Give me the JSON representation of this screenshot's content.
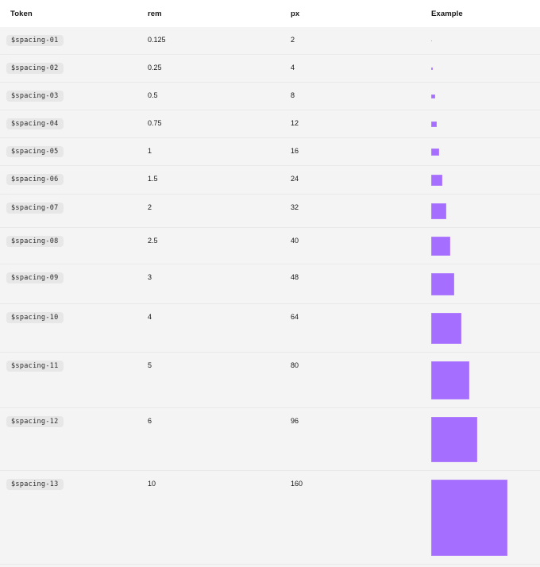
{
  "table": {
    "headers": {
      "token": "Token",
      "rem": "rem",
      "px": "px",
      "example": "Example"
    },
    "rows": [
      {
        "token": "$spacing-01",
        "rem": "0.125",
        "px": "2"
      },
      {
        "token": "$spacing-02",
        "rem": "0.25",
        "px": "4"
      },
      {
        "token": "$spacing-03",
        "rem": "0.5",
        "px": "8"
      },
      {
        "token": "$spacing-04",
        "rem": "0.75",
        "px": "12"
      },
      {
        "token": "$spacing-05",
        "rem": "1",
        "px": "16"
      },
      {
        "token": "$spacing-06",
        "rem": "1.5",
        "px": "24"
      },
      {
        "token": "$spacing-07",
        "rem": "2",
        "px": "32"
      },
      {
        "token": "$spacing-08",
        "rem": "2.5",
        "px": "40"
      },
      {
        "token": "$spacing-09",
        "rem": "3",
        "px": "48"
      },
      {
        "token": "$spacing-10",
        "rem": "4",
        "px": "64"
      },
      {
        "token": "$spacing-11",
        "rem": "5",
        "px": "80"
      },
      {
        "token": "$spacing-12",
        "rem": "6",
        "px": "96"
      },
      {
        "token": "$spacing-13",
        "rem": "10",
        "px": "160"
      }
    ],
    "colors": {
      "example_square": "#a56eff",
      "row_background": "#f4f4f4",
      "pill_background": "#e7e7e7",
      "header_background": "#ffffff",
      "text": "#161616",
      "separator": "#e9e9e9"
    }
  }
}
